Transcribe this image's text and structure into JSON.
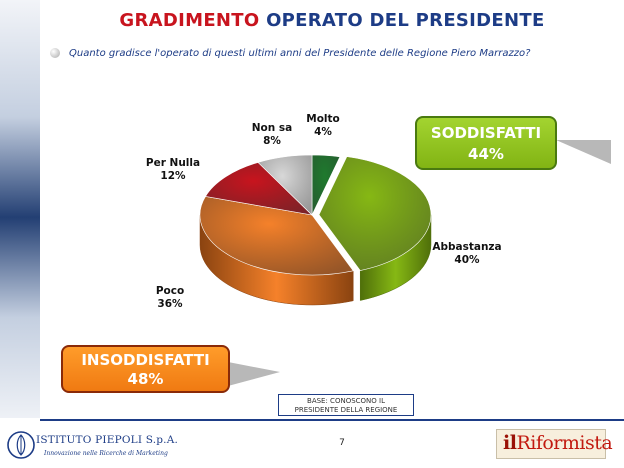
{
  "title": {
    "part1": "GRADIMENTO",
    "part2": "OPERATO DEL PRESIDENTE"
  },
  "question": "Quanto gradisce l'operato di questi ultimi anni del Presidente delle Regione Piero Marrazzo?",
  "chart_data": {
    "type": "pie",
    "slices": [
      {
        "name": "Molto",
        "value": 4,
        "label": "4%",
        "color": "#1f7a2e",
        "dark": "#0f4a1a"
      },
      {
        "name": "Abbastanza",
        "value": 40,
        "label": "40%",
        "color": "#86b814",
        "dark": "#4f6f0a"
      },
      {
        "name": "Poco",
        "value": 36,
        "label": "36%",
        "color": "#f5812a",
        "dark": "#8a4310"
      },
      {
        "name": "Per Nulla",
        "value": 12,
        "label": "12%",
        "color": "#c8141e",
        "dark": "#6e0a10"
      },
      {
        "name": "Non sa",
        "value": 8,
        "label": "8%",
        "color": "#d8d8d8",
        "dark": "#8c8c8c"
      }
    ]
  },
  "callouts": {
    "soddisfatti": {
      "label": "SODDISFATTI",
      "value": "44%",
      "color": "#8dc21f"
    },
    "insoddisfatti": {
      "label": "INSODDISFATTI",
      "value": "48%",
      "color": "#f5871f"
    }
  },
  "base_note": {
    "line1": "BASE: CONOSCONO IL",
    "line2": "PRESIDENTE DELLA REGIONE"
  },
  "page_number": "7",
  "footer": {
    "left_logo": {
      "name": "ISTITUTO PIEPOLI S.p.A.",
      "tagline": "Innovazione nelle Ricerche di Marketing"
    },
    "right_logo": {
      "il": "il",
      "name": "Riformista"
    }
  }
}
